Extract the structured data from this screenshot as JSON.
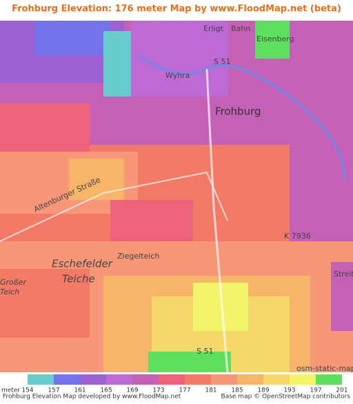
{
  "header": {
    "title": "Frohburg Elevation: 176 meter Map by www.FloodMap.net (beta)"
  },
  "map": {
    "labels": [
      "Erligt",
      "Bahn",
      "Eisenberg",
      "Wyhra",
      "S 51",
      "Frohburg",
      "Altenburger Straße",
      "Ziegelteich",
      "Eschefelder",
      "Teiche",
      "Großer",
      "Teich",
      "K 7936",
      "Streit",
      "S 51",
      "osm-static-maps"
    ]
  },
  "legend": {
    "unit": "meter",
    "items": [
      {
        "value": 154,
        "color": "#66cccc"
      },
      {
        "value": 157,
        "color": "#7373ec"
      },
      {
        "value": 161,
        "color": "#9d62d2"
      },
      {
        "value": 165,
        "color": "#bd6ad6"
      },
      {
        "value": 169,
        "color": "#c461b6"
      },
      {
        "value": 173,
        "color": "#ec637a"
      },
      {
        "value": 177,
        "color": "#f47a68"
      },
      {
        "value": 181,
        "color": "#f79778"
      },
      {
        "value": 185,
        "color": "#f8b468"
      },
      {
        "value": 189,
        "color": "#f6d86a"
      },
      {
        "value": 193,
        "color": "#f4f46a"
      },
      {
        "value": 197,
        "color": "#5ee05e"
      },
      {
        "value": 201,
        "color": null
      }
    ]
  },
  "footer": {
    "left": "Frohburg Elevation Map developed by www.FloodMap.net",
    "right": "Base map © OpenStreetMap contributors"
  }
}
